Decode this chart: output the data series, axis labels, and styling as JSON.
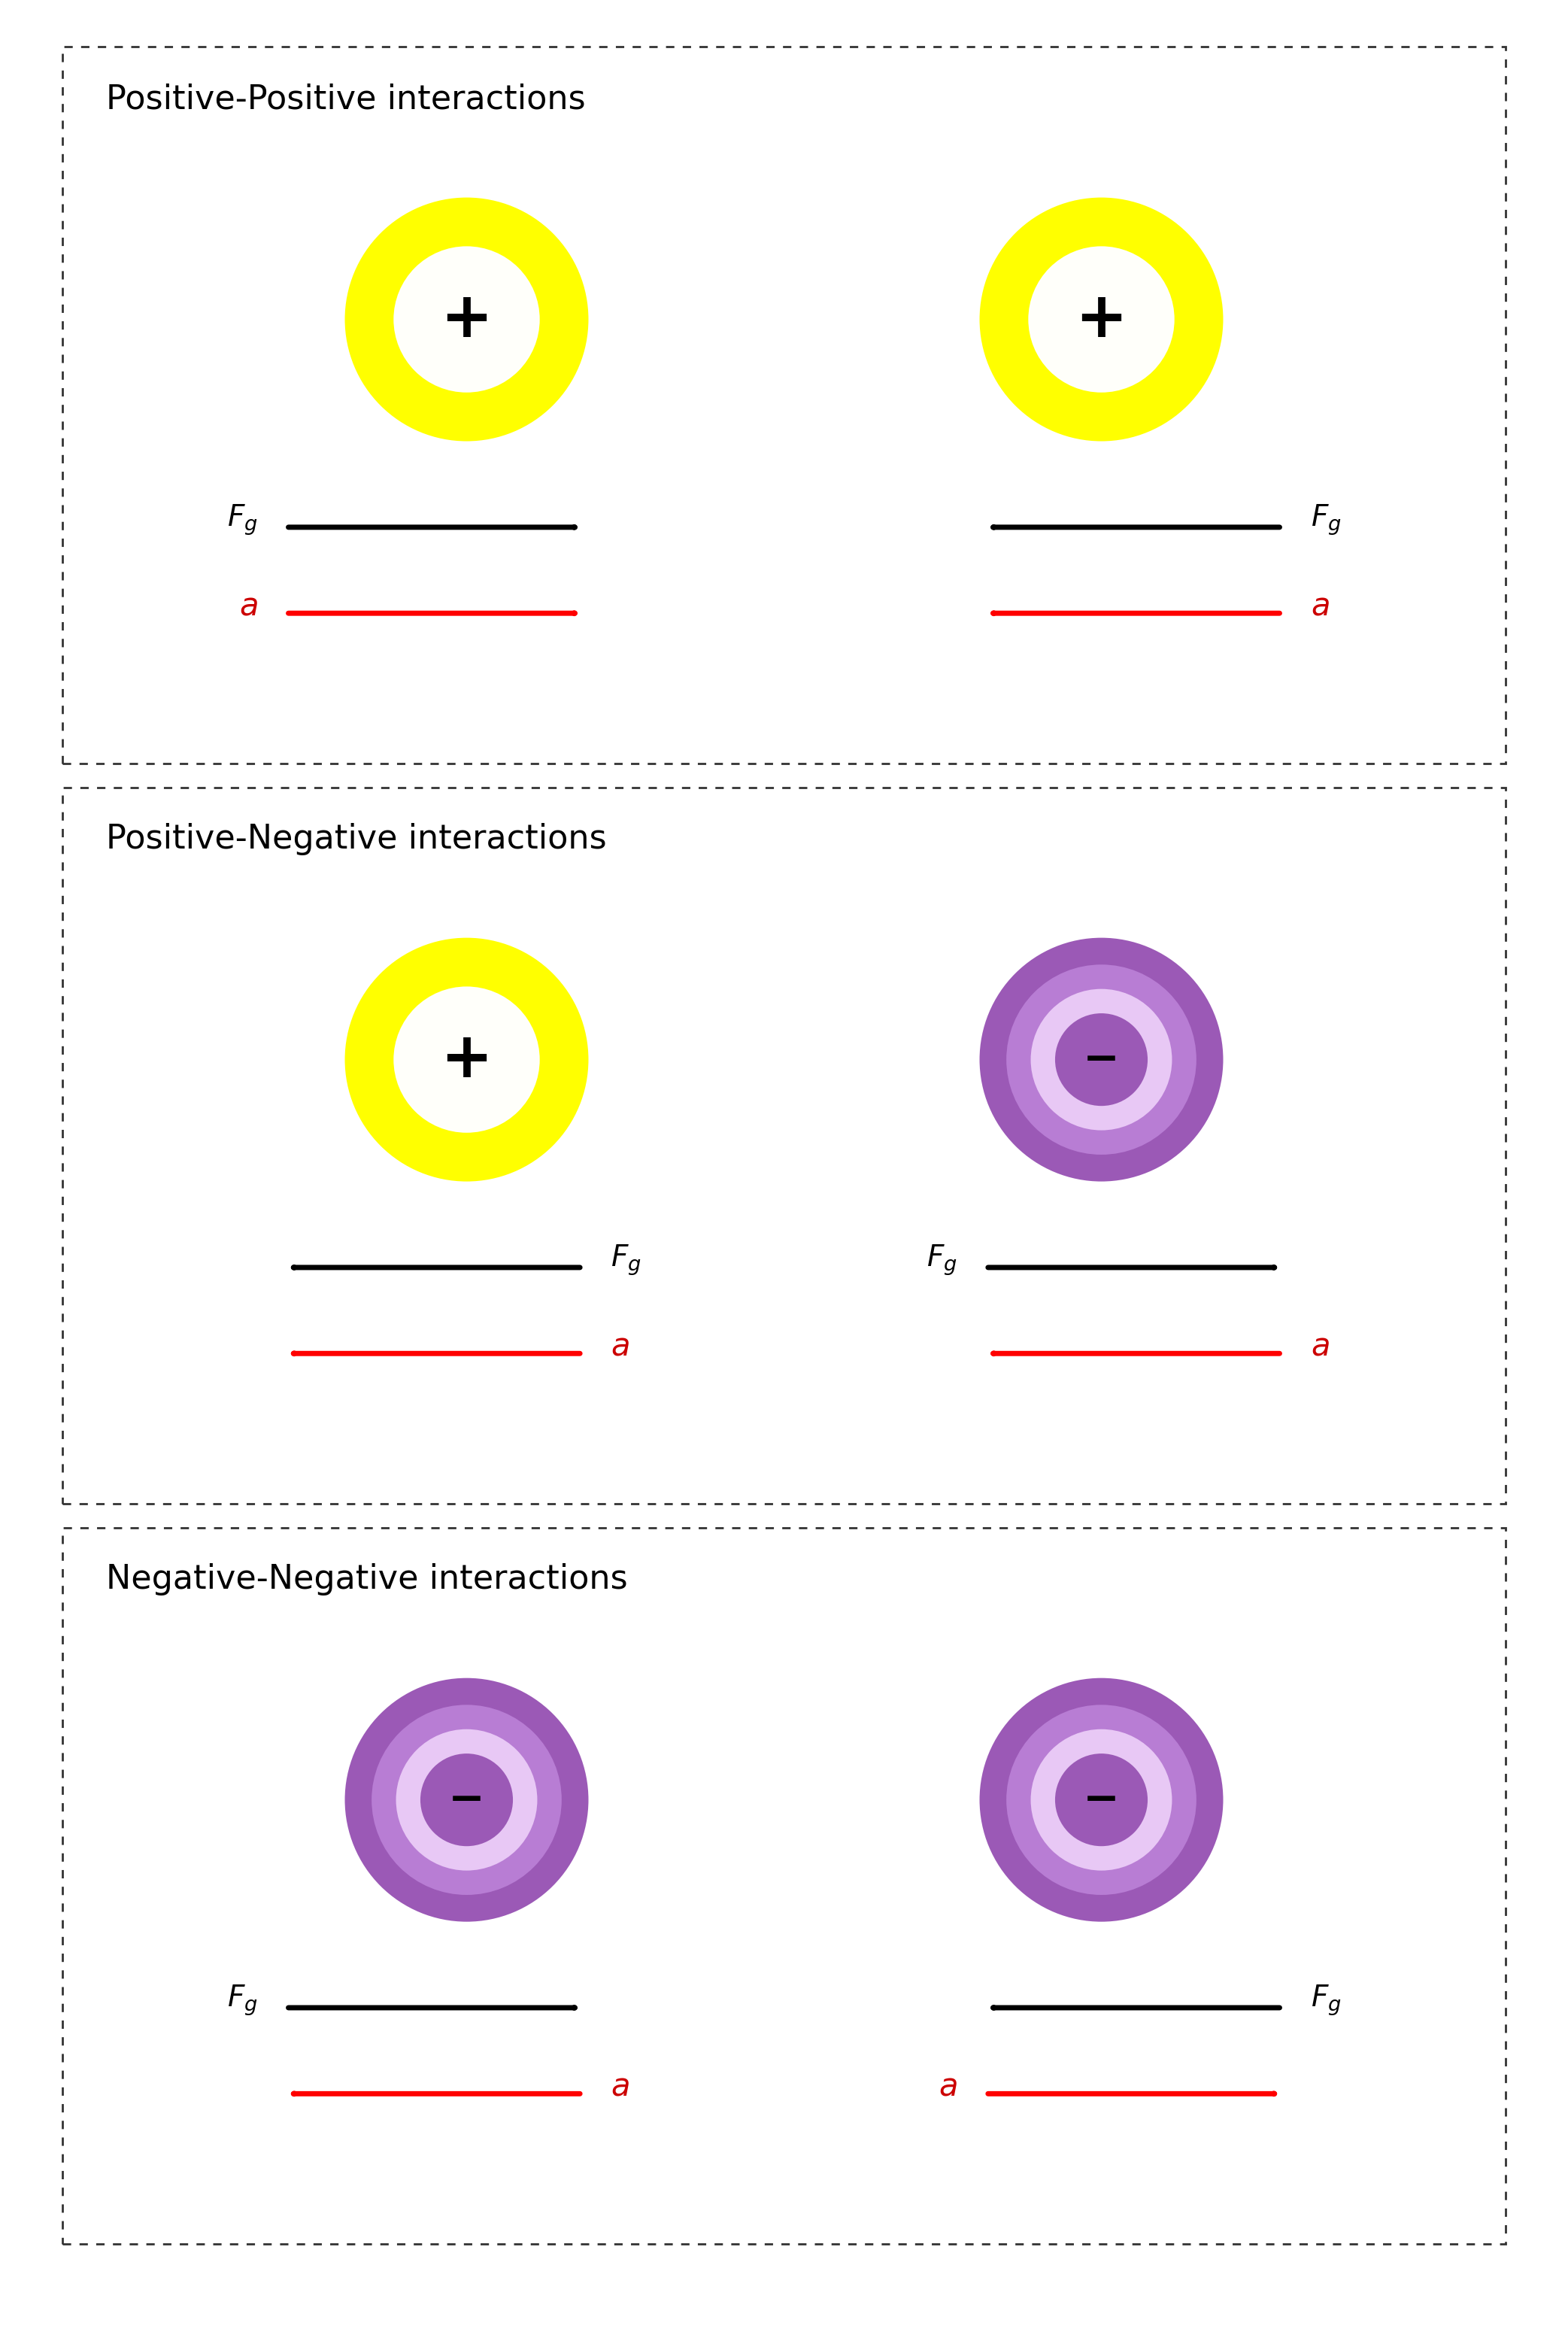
{
  "bg_color": "#ffffff",
  "panel_titles": [
    "Positive-Positive interactions",
    "Positive-Negative interactions",
    "Negative-Negative interactions"
  ],
  "positive_outer_color": "#ffff00",
  "positive_inner_color": "#fffffA",
  "negative_outer_color": "#9b59b6",
  "negative_mid_color": "#b87dd4",
  "negative_inner_color": "#d4a8e8",
  "negative_innermost_color": "#e8c8f5",
  "arrow_black": "#000000",
  "arrow_red": "#cc0000",
  "title_fontsize": 32,
  "symbol_fontsize": 60,
  "fg_fontsize": 28,
  "a_fontsize": 30
}
